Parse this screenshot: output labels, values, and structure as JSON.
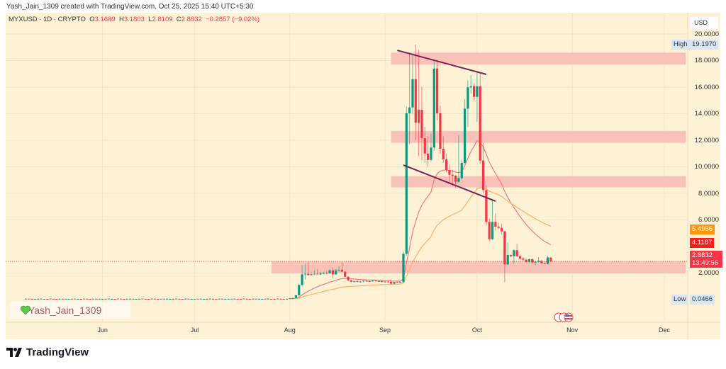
{
  "attribution": "Yash_Jain_1309 created with TradingView.com, Oct 25, 2025 15:40 UTC+5:30",
  "legend": {
    "symbol": "MYXUSD · 1D · CRYPTO",
    "open_label": "O",
    "open": "3.1689",
    "high_label": "H",
    "high": "3.1803",
    "low_label": "L",
    "low": "2.8109",
    "close_label": "C",
    "close": "2.8832",
    "change": "−0.2857 (−9.02%)"
  },
  "currency": "USD",
  "price_scale": {
    "ticks": [
      "20.0000",
      "18.0000",
      "16.0000",
      "14.0000",
      "12.0000",
      "10.0000",
      "8.0000",
      "6.0000",
      "2.0000"
    ],
    "high_label": "High",
    "high_value": "19.1970",
    "low_label": "Low",
    "low_value": "0.0466",
    "ma_slow_value": "5.4956",
    "ma_fast_value": "4.1187",
    "last_price": "2.8832",
    "countdown": "13:49:56"
  },
  "time_axis": [
    "Jun",
    "Jul",
    "Aug",
    "Sep",
    "Oct",
    "Nov",
    "Dec"
  ],
  "watermark": "Yash_Jain_1309",
  "brand": "TradingView",
  "colors": {
    "up": "#089981",
    "down": "#f23645",
    "zone": "#f7bdb5",
    "trendline": "#7e1f54",
    "ma_fast": "#f7787c",
    "ma_slow": "#ffb060",
    "background": "#fdf1d6"
  },
  "chart_data": {
    "type": "candlestick",
    "title": "MYXUSD · 1D · CRYPTO",
    "ylabel": "USD",
    "ylim": [
      0,
      20.6
    ],
    "x_range": [
      "2025-05-01",
      "2025-12-08"
    ],
    "pre_period": {
      "start": "2025-05-07",
      "end": "2025-07-31",
      "level": 0.06
    },
    "candles_start": "2025-08-01",
    "candles_ohlc": [
      [
        0.09,
        0.1,
        0.08,
        0.1
      ],
      [
        0.1,
        0.13,
        0.09,
        0.12
      ],
      [
        0.12,
        0.35,
        0.11,
        0.32
      ],
      [
        0.32,
        1.2,
        0.3,
        1.1
      ],
      [
        1.1,
        2.6,
        1.0,
        1.9
      ],
      [
        1.9,
        2.7,
        1.5,
        1.95
      ],
      [
        1.95,
        2.8,
        1.8,
        1.85
      ],
      [
        1.85,
        2.1,
        1.8,
        1.9
      ],
      [
        1.9,
        2.2,
        1.85,
        1.95
      ],
      [
        1.95,
        2.3,
        1.9,
        1.9
      ],
      [
        1.9,
        2.1,
        1.85,
        1.98
      ],
      [
        1.98,
        2.1,
        1.9,
        2.0
      ],
      [
        2.0,
        2.15,
        1.95,
        1.97
      ],
      [
        1.97,
        2.3,
        1.95,
        2.2
      ],
      [
        2.2,
        2.4,
        1.6,
        1.9
      ],
      [
        1.9,
        2.3,
        1.85,
        2.2
      ],
      [
        2.2,
        2.5,
        2.1,
        2.25
      ],
      [
        2.25,
        2.8,
        2.1,
        2.1
      ],
      [
        2.1,
        2.15,
        1.7,
        1.72
      ],
      [
        1.72,
        1.8,
        1.4,
        1.45
      ],
      [
        1.45,
        1.5,
        1.3,
        1.35
      ],
      [
        1.35,
        1.42,
        1.3,
        1.38
      ],
      [
        1.38,
        1.45,
        1.3,
        1.33
      ],
      [
        1.33,
        1.4,
        1.28,
        1.36
      ],
      [
        1.36,
        1.45,
        1.3,
        1.42
      ],
      [
        1.42,
        1.48,
        1.35,
        1.38
      ],
      [
        1.38,
        1.44,
        1.32,
        1.4
      ],
      [
        1.4,
        1.5,
        1.36,
        1.43
      ],
      [
        1.43,
        1.47,
        1.35,
        1.38
      ],
      [
        1.38,
        1.44,
        1.33,
        1.4
      ],
      [
        1.4,
        1.45,
        1.3,
        1.33
      ],
      [
        1.33,
        1.38,
        1.28,
        1.36
      ],
      [
        1.36,
        1.4,
        1.3,
        1.34
      ],
      [
        1.34,
        1.37,
        1.15,
        1.2
      ],
      [
        1.2,
        1.34,
        1.18,
        1.32
      ],
      [
        1.32,
        1.4,
        1.28,
        1.3
      ],
      [
        1.3,
        1.38,
        1.25,
        1.32
      ],
      [
        1.32,
        3.6,
        1.25,
        3.45
      ],
      [
        3.45,
        14.56,
        3.3,
        14.03
      ],
      [
        14.03,
        18.6,
        11.7,
        14.47
      ],
      [
        14.47,
        18.4,
        14.0,
        16.6
      ],
      [
        16.6,
        19.197,
        12.0,
        13.32
      ],
      [
        14.3,
        18.8,
        10.8,
        13.3
      ],
      [
        14.29,
        16.0,
        10.5,
        12.16
      ],
      [
        12.16,
        13.0,
        10.3,
        11.0
      ],
      [
        11.0,
        12.3,
        10.0,
        10.52
      ],
      [
        10.52,
        12.5,
        10.4,
        11.45
      ],
      [
        11.45,
        17.95,
        11.2,
        17.4
      ],
      [
        17.4,
        17.9,
        13.5,
        14.03
      ],
      [
        14.03,
        14.6,
        11.0,
        11.36
      ],
      [
        11.36,
        12.3,
        10.3,
        10.56
      ],
      [
        10.56,
        11.0,
        9.6,
        9.76
      ],
      [
        9.76,
        10.2,
        8.8,
        9.4
      ],
      [
        9.4,
        9.8,
        8.6,
        9.32
      ],
      [
        9.32,
        9.4,
        8.4,
        8.87
      ],
      [
        8.87,
        12.4,
        8.8,
        9.14
      ],
      [
        9.14,
        10.5,
        9.0,
        10.29
      ],
      [
        10.29,
        15.1,
        10.2,
        14.38
      ],
      [
        14.38,
        16.5,
        13.0,
        15.98
      ],
      [
        15.98,
        16.9,
        15.5,
        16.07
      ],
      [
        16.07,
        16.3,
        15.0,
        15.27
      ],
      [
        15.27,
        17.2,
        13.4,
        16.07
      ],
      [
        16.07,
        17.1,
        10.2,
        10.47
      ],
      [
        10.47,
        11.8,
        8.0,
        8.25
      ],
      [
        8.25,
        8.6,
        5.6,
        5.85
      ],
      [
        5.85,
        6.1,
        4.4,
        4.55
      ],
      [
        4.55,
        7.6,
        4.5,
        5.85
      ],
      [
        5.85,
        6.5,
        5.2,
        5.49
      ],
      [
        5.49,
        5.8,
        5.3,
        5.4
      ],
      [
        5.4,
        5.7,
        4.9,
        5.14
      ],
      [
        5.14,
        5.2,
        1.3,
        2.65
      ],
      [
        2.65,
        4.3,
        2.6,
        3.36
      ],
      [
        3.36,
        3.4,
        3.2,
        3.27
      ],
      [
        3.27,
        3.8,
        2.7,
        3.72
      ],
      [
        3.72,
        4.2,
        3.2,
        3.27
      ],
      [
        3.27,
        3.4,
        3.0,
        3.09
      ],
      [
        3.09,
        3.2,
        2.9,
        3.0
      ],
      [
        3.0,
        3.1,
        2.8,
        2.83
      ],
      [
        2.83,
        3.1,
        2.75,
        3.04
      ],
      [
        3.04,
        3.1,
        2.7,
        2.79
      ],
      [
        2.79,
        2.9,
        2.6,
        2.84
      ],
      [
        2.84,
        3.2,
        2.8,
        2.92
      ],
      [
        2.92,
        3.0,
        2.7,
        2.74
      ],
      [
        2.74,
        2.8,
        2.65,
        2.69
      ],
      [
        2.69,
        3.3,
        2.65,
        3.17
      ],
      [
        3.1689,
        3.1803,
        2.8109,
        2.8832
      ]
    ],
    "zones": [
      {
        "from": "2025-09-03",
        "to": "2025-12-08",
        "low": 17.7,
        "high": 18.6
      },
      {
        "from": "2025-09-03",
        "to": "2025-12-08",
        "low": 11.8,
        "high": 12.7
      },
      {
        "from": "2025-09-03",
        "to": "2025-12-08",
        "low": 8.45,
        "high": 9.3
      },
      {
        "from": "2025-07-26",
        "to": "2025-12-08",
        "low": 1.97,
        "high": 2.88
      }
    ],
    "trendlines": [
      {
        "from": [
          "2025-09-05",
          18.77
        ],
        "to": [
          "2025-10-04",
          16.96
        ]
      },
      {
        "from": [
          "2025-09-07",
          10.13
        ],
        "to": [
          "2025-10-07",
          7.41
        ]
      }
    ],
    "moving_averages": [
      {
        "name": "fast",
        "last": 4.1187
      },
      {
        "name": "slow",
        "last": 5.4956
      }
    ]
  }
}
